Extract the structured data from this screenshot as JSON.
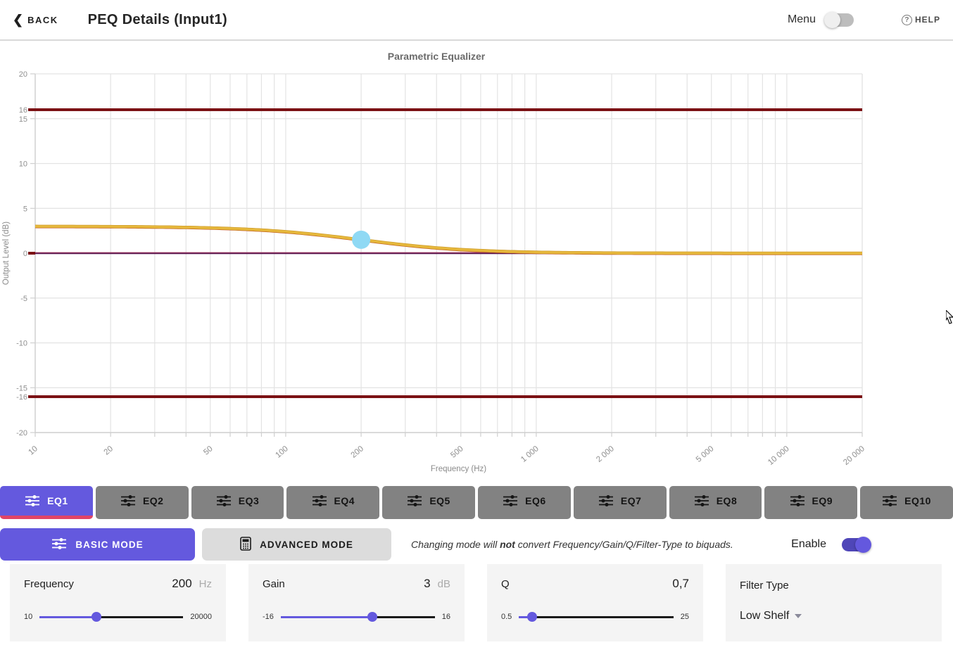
{
  "header": {
    "back_label": "BACK",
    "title": "PEQ Details (Input1)",
    "menu_label": "Menu",
    "menu_on": false,
    "help_label": "HELP"
  },
  "chart_data": {
    "type": "line",
    "title": "Parametric Equalizer",
    "xlabel": "Frequency (Hz)",
    "ylabel": "Output Level (dB)",
    "x_scale": "log",
    "xlim": [
      10,
      20000
    ],
    "ylim": [
      -20,
      20
    ],
    "grid": true,
    "x_ticks": [
      {
        "v": 10,
        "label": "10"
      },
      {
        "v": 20,
        "label": "20"
      },
      {
        "v": 50,
        "label": "50"
      },
      {
        "v": 100,
        "label": "100"
      },
      {
        "v": 200,
        "label": "200"
      },
      {
        "v": 500,
        "label": "500"
      },
      {
        "v": 1000,
        "label": "1 000"
      },
      {
        "v": 2000,
        "label": "2 000"
      },
      {
        "v": 5000,
        "label": "5 000"
      },
      {
        "v": 10000,
        "label": "10 000"
      },
      {
        "v": 20000,
        "label": "20 000"
      }
    ],
    "y_ticks": [
      {
        "v": 20,
        "label": "20",
        "grid": true
      },
      {
        "v": 16,
        "label": "16",
        "grid": false
      },
      {
        "v": 15,
        "label": "15",
        "grid": true
      },
      {
        "v": 10,
        "label": "10",
        "grid": true
      },
      {
        "v": 5,
        "label": "5",
        "grid": true
      },
      {
        "v": 0,
        "label": "0",
        "grid": true
      },
      {
        "v": -5,
        "label": "-5",
        "grid": true
      },
      {
        "v": -10,
        "label": "-10",
        "grid": true
      },
      {
        "v": -15,
        "label": "-15",
        "grid": true
      },
      {
        "v": -16,
        "label": "-16",
        "grid": false
      },
      {
        "v": -20,
        "label": "-20",
        "grid": true
      }
    ],
    "limit_lines": {
      "values": [
        16,
        -16
      ],
      "color": "#7b1114"
    },
    "zero_line": {
      "value": 0,
      "color": "#5c1b52"
    },
    "series": [
      {
        "name": "eq1-band-response",
        "color": "#c63d22",
        "filter": "low_shelf",
        "gain_db": 3,
        "freq_hz": 200,
        "q": 0.7
      },
      {
        "name": "overall-response",
        "color": "#e7b83c",
        "filter": "low_shelf",
        "gain_db": 3,
        "freq_hz": 200,
        "q": 0.7,
        "key_points": [
          [
            10,
            3
          ],
          [
            50,
            2.8
          ],
          [
            100,
            2.4
          ],
          [
            200,
            1.5
          ],
          [
            500,
            0.4
          ],
          [
            1000,
            0.1
          ],
          [
            2000,
            0
          ],
          [
            20000,
            0
          ]
        ]
      }
    ],
    "marker": {
      "freq_hz": 200,
      "level_db": 1.5,
      "color": "#8fd9f4"
    }
  },
  "tabs": [
    {
      "label": "EQ1",
      "active": true
    },
    {
      "label": "EQ2",
      "active": false
    },
    {
      "label": "EQ3",
      "active": false
    },
    {
      "label": "EQ4",
      "active": false
    },
    {
      "label": "EQ5",
      "active": false
    },
    {
      "label": "EQ6",
      "active": false
    },
    {
      "label": "EQ7",
      "active": false
    },
    {
      "label": "EQ8",
      "active": false
    },
    {
      "label": "EQ9",
      "active": false
    },
    {
      "label": "EQ10",
      "active": false
    }
  ],
  "mode": {
    "basic_label": "BASIC MODE",
    "advanced_label": "ADVANCED MODE",
    "active": "basic",
    "note_prefix": "Changing mode will ",
    "note_bold": "not",
    "note_suffix": " convert Frequency/Gain/Q/Filter-Type to biquads.",
    "enable_label": "Enable",
    "enable_on": true
  },
  "controls": {
    "frequency": {
      "label": "Frequency",
      "value": "200",
      "unit": "Hz",
      "min": "10",
      "max": "20000",
      "value_num": 200,
      "min_num": 10,
      "max_num": 20000,
      "scale": "log"
    },
    "gain": {
      "label": "Gain",
      "value": "3",
      "unit": "dB",
      "min": "-16",
      "max": "16",
      "value_num": 3,
      "min_num": -16,
      "max_num": 16,
      "scale": "linear"
    },
    "q": {
      "label": "Q",
      "value": "0,7",
      "unit": "",
      "min": "0.5",
      "max": "25",
      "value_num": 0.7,
      "min_num": 0.5,
      "max_num": 25,
      "scale": "log"
    },
    "filter_type": {
      "label": "Filter Type",
      "value": "Low Shelf"
    }
  },
  "colors": {
    "accent_purple": "#6459de",
    "tab_underline_pink": "#e04467",
    "tab_gray": "#828282",
    "limit_red": "#7b1114",
    "zero_purple": "#5c1b52",
    "curve_yellow": "#e7b83c",
    "band_red": "#c63d22",
    "marker_blue": "#8fd9f4",
    "grid_gray": "#e3e3e3"
  }
}
